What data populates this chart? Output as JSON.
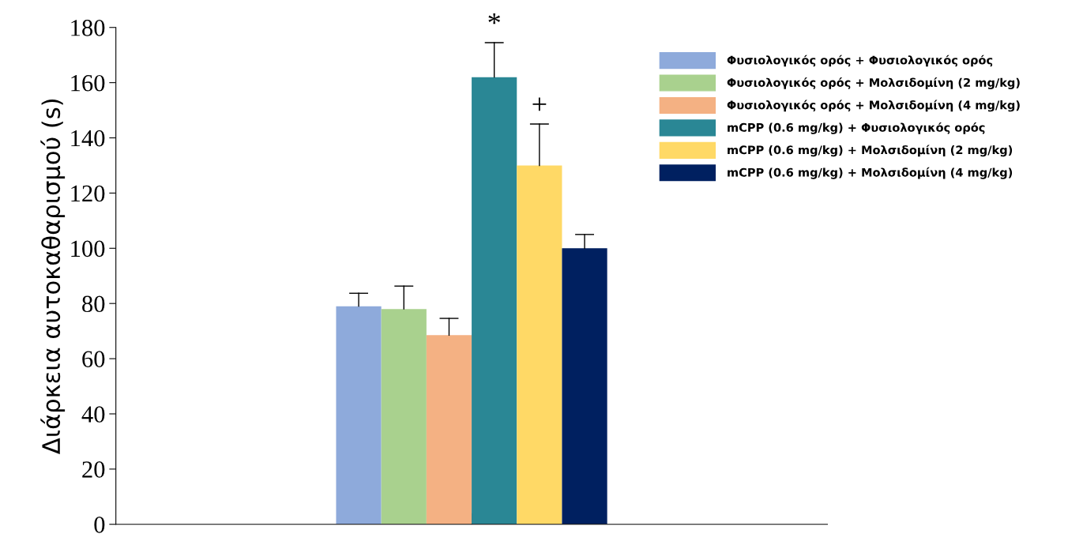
{
  "chart_data": {
    "type": "bar",
    "ylabel": "Διάρκεια αυτοκαθαρισμού (s)",
    "categories": [
      null
    ],
    "series": [
      {
        "name": "Φυσιολογικός ορός + Φυσιολογικός ορός",
        "color": "#8eaadb",
        "values": [
          79
        ],
        "errors": [
          [
            79,
            83.7
          ]
        ]
      },
      {
        "name": "Φυσιολογικός ορός + Μολσιδομίνη (2 mg/kg)",
        "color": "#a9d18e",
        "values": [
          78
        ],
        "errors": [
          [
            78,
            86.3
          ]
        ]
      },
      {
        "name": "Φυσιολογικός ορός + Μολσιδομίνη (4 mg/kg)",
        "color": "#f4b183",
        "values": [
          68.5
        ],
        "errors": [
          [
            68.5,
            74.6
          ]
        ]
      },
      {
        "name": "mCPP (0.6 mg/kg) + Φυσιολογικός ορός",
        "color": "#2a8795",
        "values": [
          162
        ],
        "errors": [
          [
            162,
            174.5
          ]
        ]
      },
      {
        "name": "mCPP (0.6 mg/kg) + Μολσιδομίνη (2 mg/kg)",
        "color": "#ffd966",
        "values": [
          130
        ],
        "errors": [
          [
            130,
            145
          ]
        ]
      },
      {
        "name": "mCPP (0.6 mg/kg) + Μολσιδομίνη (4 mg/kg)",
        "color": "#002060",
        "values": [
          100
        ],
        "errors": [
          [
            100,
            105
          ]
        ]
      }
    ],
    "annotations": [
      "*",
      "+"
    ],
    "ylim": [
      0,
      180
    ],
    "yticks": [
      0,
      20,
      40,
      60,
      80,
      100,
      120,
      140,
      160,
      180
    ],
    "grid": false,
    "legend": "top right"
  }
}
